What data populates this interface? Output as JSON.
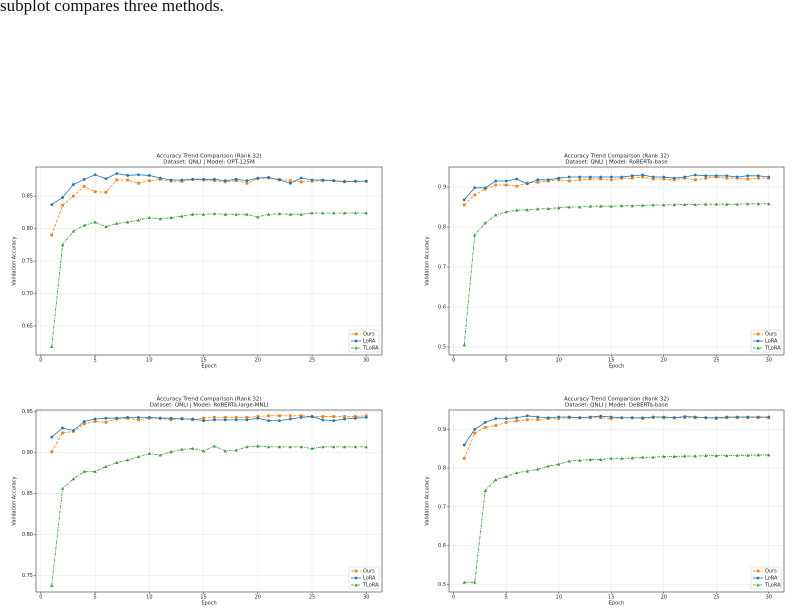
{
  "caption_fragment": "subplot compares three methods.",
  "chart_data": [
    {
      "type": "line",
      "title": "Accuracy Trend Comparison (Rank 32)",
      "subtitle": "Dataset: QNLI | Model: OPT-125M",
      "x_label": "Epoch",
      "y_label": "Validation Accuracy",
      "x": [
        1,
        2,
        3,
        4,
        5,
        6,
        7,
        8,
        9,
        10,
        11,
        12,
        13,
        14,
        15,
        16,
        17,
        18,
        19,
        20,
        21,
        22,
        23,
        24,
        25,
        26,
        27,
        28,
        29,
        30
      ],
      "xlim": [
        -0.45,
        31.45
      ],
      "xticks": [
        0,
        5,
        10,
        15,
        20,
        25,
        30
      ],
      "ylim": [
        0.605,
        0.895
      ],
      "yticks": [
        0.65,
        {
          "value": 0.7,
          "label": "0.70"
        },
        0.75,
        {
          "value": 0.8,
          "label": "0.80"
        },
        0.85
      ],
      "grid": true,
      "legend": "lower right",
      "series": [
        {
          "name": "Ours",
          "color": "#ff7f0e",
          "marker": "square",
          "linestyle": "dashed",
          "values": [
            0.79,
            0.836,
            0.85,
            0.865,
            0.857,
            0.856,
            0.875,
            0.875,
            0.87,
            0.874,
            0.876,
            0.873,
            0.873,
            0.876,
            0.875,
            0.874,
            0.872,
            0.874,
            0.87,
            0.877,
            0.878,
            0.876,
            0.874,
            0.872,
            0.873,
            0.874,
            0.874,
            0.873,
            0.873,
            0.873
          ]
        },
        {
          "name": "LoRA",
          "color": "#1f77b4",
          "marker": "circle",
          "linestyle": "solid",
          "values": [
            0.837,
            0.848,
            0.868,
            0.876,
            0.883,
            0.877,
            0.885,
            0.882,
            0.883,
            0.882,
            0.878,
            0.875,
            0.875,
            0.876,
            0.876,
            0.876,
            0.874,
            0.876,
            0.874,
            0.878,
            0.879,
            0.875,
            0.87,
            0.878,
            0.875,
            0.875,
            0.874,
            0.872,
            0.873,
            0.873
          ]
        },
        {
          "name": "TLoRA",
          "color": "#2ca02c",
          "marker": "triangle",
          "linestyle": "dashdot",
          "values": [
            0.618,
            0.775,
            0.796,
            0.805,
            0.81,
            0.803,
            0.808,
            0.81,
            0.813,
            0.817,
            0.815,
            0.817,
            0.819,
            0.822,
            0.822,
            0.823,
            0.822,
            0.822,
            0.822,
            0.818,
            0.822,
            0.823,
            0.822,
            0.822,
            0.824,
            0.824,
            0.824,
            0.824,
            0.824,
            0.824
          ]
        }
      ]
    },
    {
      "type": "line",
      "title": "Accuracy Trend Comparison (Rank 32)",
      "subtitle": "Dataset: QNLI | Model: RoBERTa-base",
      "x_label": "Epoch",
      "y_label": "Validation Accuracy",
      "x": [
        1,
        2,
        3,
        4,
        5,
        6,
        7,
        8,
        9,
        10,
        11,
        12,
        13,
        14,
        15,
        16,
        17,
        18,
        19,
        20,
        21,
        22,
        23,
        24,
        25,
        26,
        27,
        28,
        29,
        30
      ],
      "xlim": [
        -0.45,
        31.45
      ],
      "xticks": [
        0,
        5,
        10,
        15,
        20,
        25,
        30
      ],
      "ylim": [
        0.48,
        0.95
      ],
      "yticks": [
        0.5,
        0.6,
        0.7,
        0.8,
        0.9
      ],
      "grid": true,
      "legend": "lower right",
      "series": [
        {
          "name": "Ours",
          "color": "#ff7f0e",
          "marker": "square",
          "linestyle": "dashed",
          "values": [
            0.855,
            0.88,
            0.895,
            0.905,
            0.905,
            0.902,
            0.91,
            0.912,
            0.915,
            0.918,
            0.915,
            0.918,
            0.92,
            0.92,
            0.918,
            0.922,
            0.922,
            0.925,
            0.92,
            0.92,
            0.918,
            0.922,
            0.918,
            0.922,
            0.925,
            0.922,
            0.922,
            0.92,
            0.922,
            0.922
          ]
        },
        {
          "name": "LoRA",
          "color": "#1f77b4",
          "marker": "circle",
          "linestyle": "solid",
          "values": [
            0.868,
            0.898,
            0.898,
            0.915,
            0.915,
            0.92,
            0.908,
            0.918,
            0.918,
            0.922,
            0.925,
            0.925,
            0.925,
            0.925,
            0.925,
            0.925,
            0.928,
            0.93,
            0.925,
            0.925,
            0.922,
            0.925,
            0.93,
            0.928,
            0.928,
            0.928,
            0.925,
            0.928,
            0.928,
            0.925
          ]
        },
        {
          "name": "TLoRA",
          "color": "#2ca02c",
          "marker": "triangle",
          "linestyle": "dashdot",
          "values": [
            0.505,
            0.78,
            0.81,
            0.83,
            0.838,
            0.842,
            0.843,
            0.845,
            0.846,
            0.848,
            0.85,
            0.85,
            0.852,
            0.852,
            0.852,
            0.853,
            0.853,
            0.854,
            0.855,
            0.855,
            0.856,
            0.856,
            0.856,
            0.857,
            0.857,
            0.857,
            0.857,
            0.858,
            0.858,
            0.858
          ]
        }
      ]
    },
    {
      "type": "line",
      "title": "Accuracy Trend Comparison (Rank 32)",
      "subtitle": "Dataset: QNLI | Model: RoBERTa-large-MNLI",
      "x_label": "Epoch",
      "y_label": "Validation Accuracy",
      "x": [
        1,
        2,
        3,
        4,
        5,
        6,
        7,
        8,
        9,
        10,
        11,
        12,
        13,
        14,
        15,
        16,
        17,
        18,
        19,
        20,
        21,
        22,
        23,
        24,
        25,
        26,
        27,
        28,
        29,
        30
      ],
      "xlim": [
        -0.45,
        31.45
      ],
      "xticks": [
        0,
        5,
        10,
        15,
        20,
        25,
        30
      ],
      "ylim": [
        0.73,
        0.952
      ],
      "yticks": [
        0.75,
        {
          "value": 0.8,
          "label": "0.80"
        },
        0.85,
        {
          "value": 0.9,
          "label": "0.90"
        },
        0.95
      ],
      "grid": true,
      "legend": "lower right",
      "series": [
        {
          "name": "Ours",
          "color": "#ff7f0e",
          "marker": "square",
          "linestyle": "dashed",
          "values": [
            0.901,
            0.924,
            0.926,
            0.935,
            0.938,
            0.937,
            0.941,
            0.942,
            0.94,
            0.942,
            0.942,
            0.94,
            0.942,
            0.94,
            0.942,
            0.943,
            0.943,
            0.943,
            0.943,
            0.944,
            0.945,
            0.945,
            0.945,
            0.945,
            0.944,
            0.944,
            0.944,
            0.944,
            0.944,
            0.945
          ]
        },
        {
          "name": "LoRA",
          "color": "#1f77b4",
          "marker": "circle",
          "linestyle": "solid",
          "values": [
            0.919,
            0.93,
            0.927,
            0.938,
            0.941,
            0.942,
            0.942,
            0.943,
            0.943,
            0.943,
            0.942,
            0.942,
            0.941,
            0.941,
            0.939,
            0.94,
            0.94,
            0.94,
            0.94,
            0.942,
            0.939,
            0.939,
            0.941,
            0.943,
            0.944,
            0.94,
            0.939,
            0.941,
            0.942,
            0.943
          ]
        },
        {
          "name": "TLoRA",
          "color": "#2ca02c",
          "marker": "triangle",
          "linestyle": "dashdot",
          "values": [
            0.738,
            0.856,
            0.868,
            0.877,
            0.877,
            0.883,
            0.888,
            0.891,
            0.895,
            0.899,
            0.897,
            0.901,
            0.904,
            0.905,
            0.902,
            0.908,
            0.902,
            0.903,
            0.907,
            0.908,
            0.907,
            0.907,
            0.907,
            0.907,
            0.905,
            0.907,
            0.907,
            0.907,
            0.907,
            0.907
          ]
        }
      ]
    },
    {
      "type": "line",
      "title": "Accuracy Trend Comparison (Rank 32)",
      "subtitle": "Dataset: QNLI | Model: DeBERTa-base",
      "x_label": "Epoch",
      "y_label": "Validation Accuracy",
      "x": [
        1,
        2,
        3,
        4,
        5,
        6,
        7,
        8,
        9,
        10,
        11,
        12,
        13,
        14,
        15,
        16,
        17,
        18,
        19,
        20,
        21,
        22,
        23,
        24,
        25,
        26,
        27,
        28,
        29,
        30
      ],
      "xlim": [
        -0.45,
        31.45
      ],
      "xticks": [
        0,
        5,
        10,
        15,
        20,
        25,
        30
      ],
      "ylim": [
        0.48,
        0.95
      ],
      "yticks": [
        0.5,
        0.6,
        0.7,
        0.8,
        0.9
      ],
      "grid": true,
      "legend": "lower right",
      "series": [
        {
          "name": "Ours",
          "color": "#ff7f0e",
          "marker": "square",
          "linestyle": "dashed",
          "values": [
            0.825,
            0.89,
            0.905,
            0.91,
            0.918,
            0.922,
            0.925,
            0.925,
            0.928,
            0.928,
            0.93,
            0.93,
            0.93,
            0.93,
            0.928,
            0.93,
            0.93,
            0.928,
            0.93,
            0.93,
            0.93,
            0.93,
            0.93,
            0.93,
            0.928,
            0.93,
            0.93,
            0.93,
            0.93,
            0.93
          ]
        },
        {
          "name": "LoRA",
          "color": "#1f77b4",
          "marker": "circle",
          "linestyle": "solid",
          "values": [
            0.86,
            0.9,
            0.918,
            0.928,
            0.928,
            0.93,
            0.935,
            0.932,
            0.93,
            0.932,
            0.932,
            0.93,
            0.932,
            0.934,
            0.932,
            0.93,
            0.93,
            0.93,
            0.932,
            0.932,
            0.93,
            0.933,
            0.932,
            0.93,
            0.93,
            0.932,
            0.932,
            0.932,
            0.932,
            0.932
          ]
        },
        {
          "name": "TLoRA",
          "color": "#2ca02c",
          "marker": "triangle",
          "linestyle": "dashdot",
          "values": [
            0.505,
            0.505,
            0.742,
            0.77,
            0.778,
            0.788,
            0.792,
            0.797,
            0.805,
            0.81,
            0.818,
            0.82,
            0.822,
            0.822,
            0.825,
            0.825,
            0.826,
            0.828,
            0.828,
            0.83,
            0.83,
            0.831,
            0.831,
            0.832,
            0.832,
            0.832,
            0.833,
            0.833,
            0.834,
            0.834
          ]
        }
      ]
    }
  ]
}
